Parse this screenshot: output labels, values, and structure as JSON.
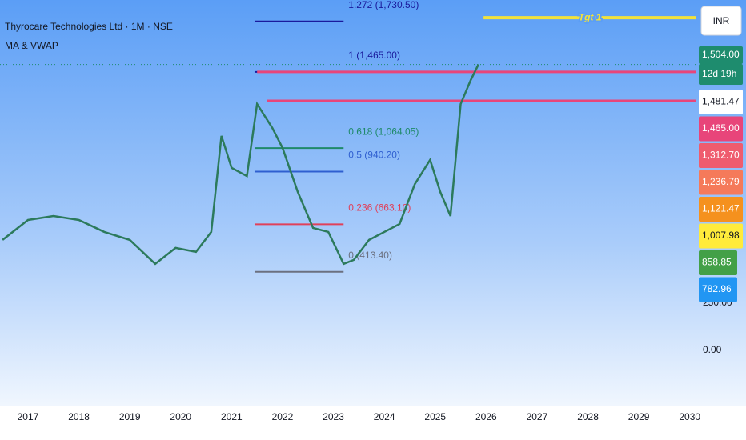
{
  "chart_data": {
    "type": "line",
    "title": "Thyrocare Technologies Ltd · 1M · NSE",
    "subtitle": "MA & VWAP",
    "currency": "INR",
    "x": [
      2016.5,
      2017.0,
      2017.5,
      2018.0,
      2018.5,
      2019.0,
      2019.5,
      2019.9,
      2020.3,
      2020.6,
      2020.8,
      2021.0,
      2021.3,
      2021.5,
      2021.8,
      2022.0,
      2022.3,
      2022.6,
      2022.9,
      2023.2,
      2023.4,
      2023.7,
      2024.0,
      2024.3,
      2024.6,
      2024.9,
      2025.1,
      2025.3,
      2025.5,
      2025.7,
      2025.85
    ],
    "values": [
      581,
      686,
      707,
      686,
      623,
      581,
      455,
      539,
      518,
      623,
      1128,
      960,
      917,
      1296,
      1170,
      1065,
      833,
      644,
      623,
      455,
      476,
      581,
      623,
      665,
      875,
      1002,
      833,
      707,
      1296,
      1423,
      1504
    ],
    "color": "#2c7a5c",
    "xlim": [
      2016.45,
      2030.13
    ],
    "xticks": [
      2017,
      2018,
      2019,
      2020,
      2021,
      2022,
      2023,
      2024,
      2025,
      2026,
      2027,
      2028,
      2029,
      2030
    ],
    "ylim": [
      -303,
      1843
    ],
    "yticks": [
      {
        "value": 0,
        "label": "0.00"
      },
      {
        "value": 250,
        "label": "250.00"
      }
    ],
    "fib_x": [
      2021.45,
      2023.2
    ],
    "fib_levels": [
      {
        "label": "1.272 (1,730.50)",
        "value": 1730.5,
        "color": "#1a1a9c"
      },
      {
        "label": "1 (1,465.00)",
        "value": 1465,
        "color": "#1a1a9c"
      },
      {
        "label": "0.618 (1,064.05)",
        "value": 1064.05,
        "color": "#1f8a6a"
      },
      {
        "label": "0.5 (940.20)",
        "value": 940.2,
        "color": "#2f5fd0"
      },
      {
        "label": "0.236 (663.10)",
        "value": 663.1,
        "color": "#e0405a"
      },
      {
        "label": "0 (413.40)",
        "value": 413.4,
        "color": "#6b7080"
      }
    ],
    "hlines": [
      {
        "value": 1465,
        "from": 2021.5,
        "color": "#e8457a"
      },
      {
        "value": 1312.7,
        "from": 2021.7,
        "color": "#e8457a"
      }
    ],
    "target": {
      "label": "Tgt 1",
      "value": 1750,
      "from": 2025.95,
      "color": "#f2e23a"
    },
    "price_labels": [
      {
        "text": "1,504.00",
        "bg": "#1e8c6e",
        "fg": "#ffffff"
      },
      {
        "text": "12d 19h",
        "bg": "#1e8c6e",
        "fg": "#ffffff"
      },
      {
        "text": "1,481.47",
        "bg": "#ffffff",
        "fg": "#131722"
      },
      {
        "text": "1,465.00",
        "bg": "#e8457a",
        "fg": "#ffffff"
      },
      {
        "text": "1,312.70",
        "bg": "#ef5c6e",
        "fg": "#ffffff"
      },
      {
        "text": "1,236.79",
        "bg": "#f57a5a",
        "fg": "#ffffff"
      },
      {
        "text": "1,121.47",
        "bg": "#f5911e",
        "fg": "#ffffff"
      },
      {
        "text": "1,007.98",
        "bg": "#ffeb3b",
        "fg": "#131722"
      },
      {
        "text": "858.85",
        "bg": "#43a047",
        "fg": "#ffffff"
      },
      {
        "text": "782.96",
        "bg": "#2196f3",
        "fg": "#ffffff"
      }
    ]
  }
}
